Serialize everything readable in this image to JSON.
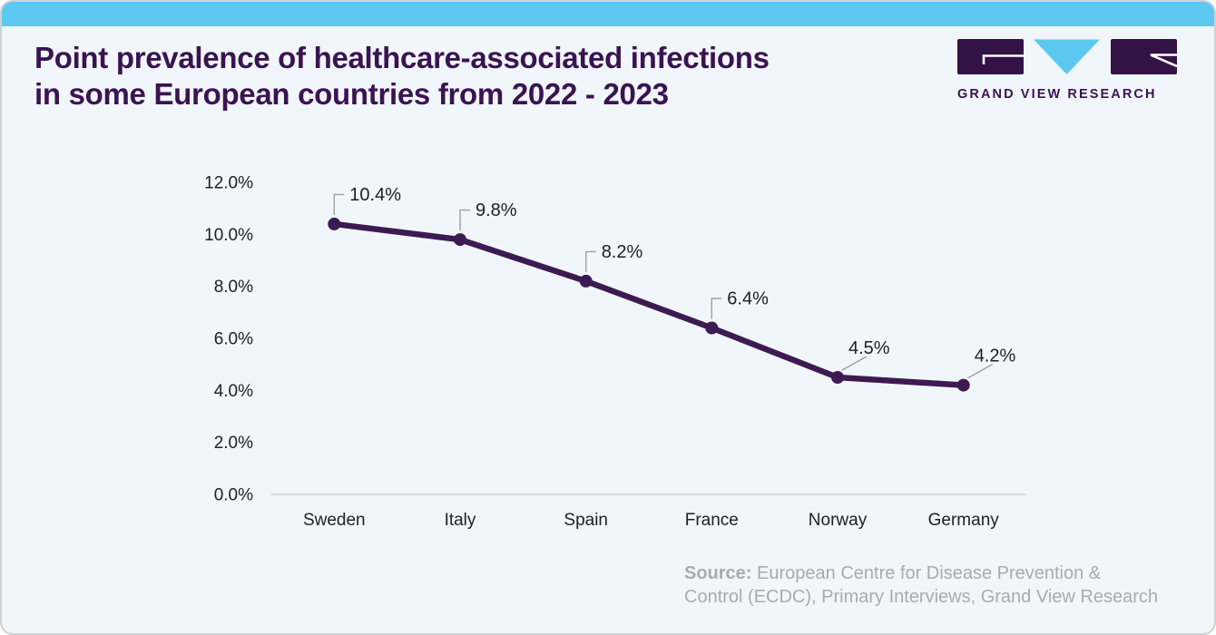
{
  "header": {
    "title_lines": [
      "Point prevalence of healthcare-associated infections",
      "in some European countries from 2022 - 2023"
    ],
    "brand_name": "GRAND VIEW RESEARCH"
  },
  "colors": {
    "accent_blue": "#5cc8f2",
    "brand_purple": "#3b1352",
    "logo_purple": "#331345",
    "line_purple": "#3d1a52",
    "card_background": "#f0f6f9",
    "axis_gray": "#d7dadc",
    "source_gray": "#a8abae"
  },
  "chart_data": {
    "type": "line",
    "title": "Point prevalence of healthcare-associated infections in some European countries from 2022 - 2023",
    "categories": [
      "Sweden",
      "Italy",
      "Spain",
      "France",
      "Norway",
      "Germany"
    ],
    "series": [
      {
        "name": "Point prevalence",
        "values": [
          10.4,
          9.8,
          8.2,
          6.4,
          4.5,
          4.2
        ],
        "point_labels": [
          "10.4%",
          "9.8%",
          "8.2%",
          "6.4%",
          "4.5%",
          "4.2%"
        ]
      }
    ],
    "xlabel": "",
    "ylabel": "",
    "ylim": [
      0,
      12
    ],
    "yticks": [
      {
        "value": 0,
        "label": "0.0%"
      },
      {
        "value": 2,
        "label": "2.0%"
      },
      {
        "value": 4,
        "label": "4.0%"
      },
      {
        "value": 6,
        "label": "6.0%"
      },
      {
        "value": 8,
        "label": "8.0%"
      },
      {
        "value": 10,
        "label": "10.0%"
      },
      {
        "value": 12,
        "label": "12.0%"
      }
    ],
    "grid": false,
    "legend": "none"
  },
  "source": {
    "label": "Source:",
    "text_lines": [
      "European Centre for Disease Prevention &",
      "Control (ECDC), Primary Interviews, Grand View Research"
    ]
  }
}
